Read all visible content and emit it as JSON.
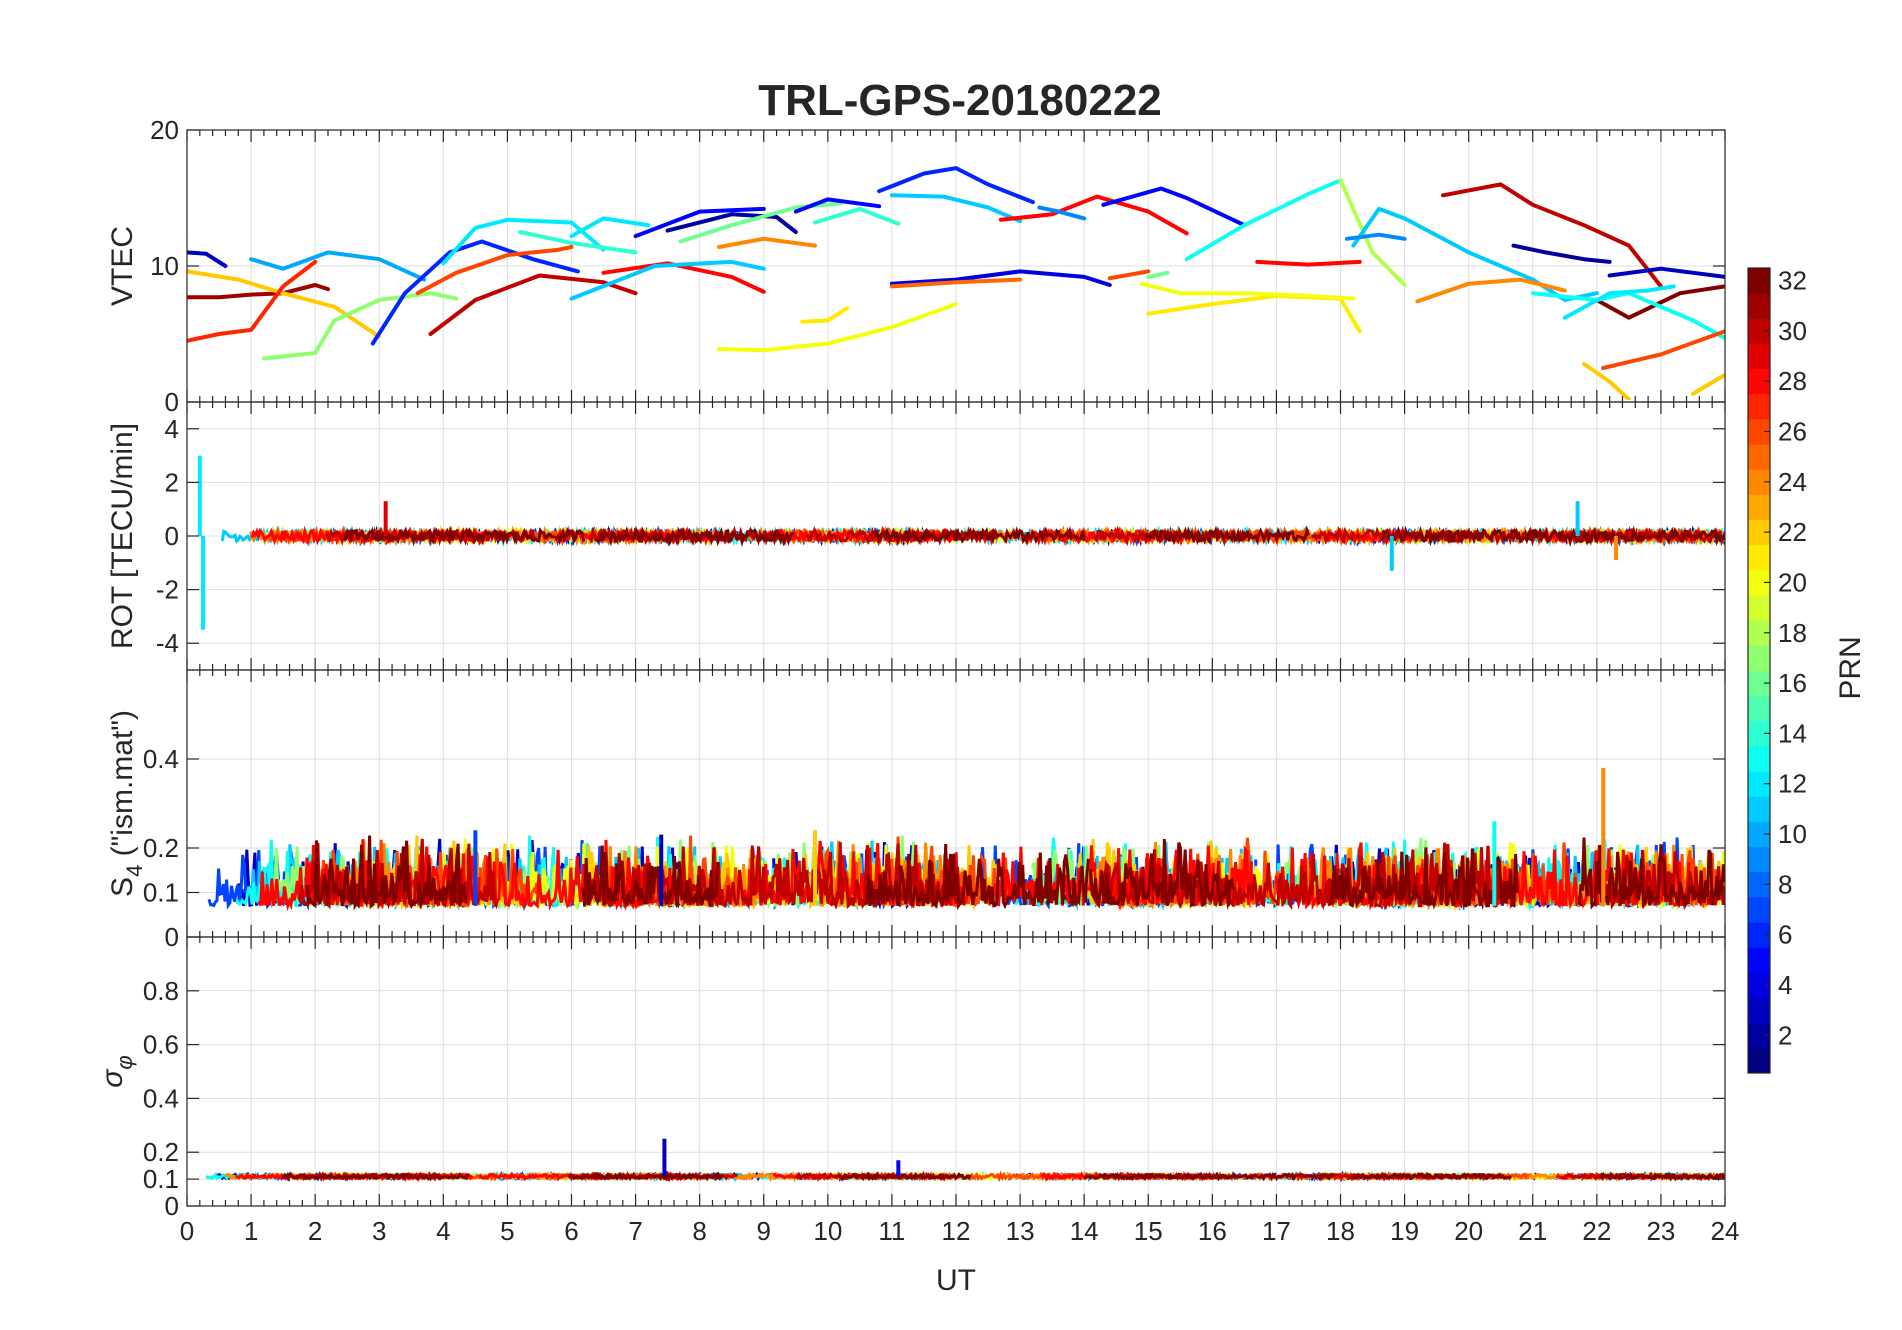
{
  "chart_data": {
    "type": "line",
    "title": "TRL-GPS-20180222",
    "xlabel": "UT",
    "xlim": [
      0,
      24
    ],
    "xticks": [
      0,
      1,
      2,
      3,
      4,
      5,
      6,
      7,
      8,
      9,
      10,
      11,
      12,
      13,
      14,
      15,
      16,
      17,
      18,
      19,
      20,
      21,
      22,
      23,
      24
    ],
    "colorbar": {
      "label": "PRN",
      "range": [
        1,
        32
      ],
      "ticks": [
        2,
        4,
        6,
        8,
        10,
        12,
        14,
        16,
        18,
        20,
        22,
        24,
        26,
        28,
        30,
        32
      ],
      "colormap": "jet"
    },
    "panels": [
      {
        "ylabel": "VTEC",
        "ylim": [
          0,
          20
        ],
        "yticks": [
          0,
          10,
          20
        ],
        "series": [
          {
            "prn": 3,
            "x": [
              0,
              0.3,
              0.6
            ],
            "y": [
              11,
              10.9,
              10
            ]
          },
          {
            "prn": 10,
            "x": [
              1,
              1.5,
              2.2,
              3,
              3.7
            ],
            "y": [
              10.5,
              9.8,
              11,
              10.5,
              9
            ]
          },
          {
            "prn": 31,
            "x": [
              0,
              0.5,
              1,
              1.5,
              2,
              2.2
            ],
            "y": [
              7.7,
              7.7,
              7.9,
              8,
              8.6,
              8.3
            ]
          },
          {
            "prn": 22,
            "x": [
              0,
              0.8,
              1.5,
              2.3,
              3
            ],
            "y": [
              9.6,
              9,
              8,
              7,
              4.8
            ]
          },
          {
            "prn": 27,
            "x": [
              0,
              0.5,
              1,
              1.5,
              2
            ],
            "y": [
              4.5,
              5,
              5.3,
              8.5,
              10.3
            ]
          },
          {
            "prn": 17,
            "x": [
              1.2,
              2,
              2.3,
              3,
              3.8,
              4.2
            ],
            "y": [
              3.2,
              3.6,
              6,
              7.5,
              8,
              7.6
            ]
          },
          {
            "prn": 6,
            "x": [
              2.9,
              3.4,
              4.1,
              4.6,
              5.4,
              6.1
            ],
            "y": [
              4.3,
              8,
              11,
              11.8,
              10.5,
              9.6
            ]
          },
          {
            "prn": 12,
            "x": [
              4,
              4.5,
              5,
              6,
              6.5
            ],
            "y": [
              10.2,
              12.8,
              13.4,
              13.2,
              11.2
            ]
          },
          {
            "prn": 26,
            "x": [
              3.6,
              4.2,
              5,
              5.8,
              6
            ],
            "y": [
              8,
              9.5,
              10.8,
              11.2,
              11.4
            ]
          },
          {
            "prn": 30,
            "x": [
              3.8,
              4.5,
              5.5,
              6.5,
              7
            ],
            "y": [
              5,
              7.5,
              9.3,
              8.8,
              8
            ]
          },
          {
            "prn": 14,
            "x": [
              5.2,
              6,
              7
            ],
            "y": [
              12.5,
              11.7,
              11
            ]
          },
          {
            "prn": 12,
            "x": [
              6,
              6.5,
              7.2
            ],
            "y": [
              12.2,
              13.5,
              13
            ]
          },
          {
            "prn": 28,
            "x": [
              6.5,
              7.5,
              8.5,
              9
            ],
            "y": [
              9.5,
              10.2,
              9.2,
              8.1
            ]
          },
          {
            "prn": 11,
            "x": [
              6,
              7.3,
              8.5,
              9
            ],
            "y": [
              7.6,
              10,
              10.3,
              9.8
            ]
          },
          {
            "prn": 5,
            "x": [
              7,
              8,
              9
            ],
            "y": [
              12.2,
              14,
              14.2
            ]
          },
          {
            "prn": 2,
            "x": [
              7.5,
              8.5,
              9.2,
              9.5
            ],
            "y": [
              12.6,
              13.8,
              13.6,
              12.5
            ]
          },
          {
            "prn": 16,
            "x": [
              7.7,
              8.5,
              9.5,
              10.2
            ],
            "y": [
              11.8,
              13,
              14.3,
              14.6
            ]
          },
          {
            "prn": 24,
            "x": [
              8.3,
              9,
              9.8
            ],
            "y": [
              11.4,
              12,
              11.5
            ]
          },
          {
            "prn": 5,
            "x": [
              9.5,
              10,
              10.8
            ],
            "y": [
              14,
              14.9,
              14.4
            ]
          },
          {
            "prn": 14,
            "x": [
              9.8,
              10.5,
              11.1
            ],
            "y": [
              13.2,
              14.2,
              13.1
            ]
          },
          {
            "prn": 21,
            "x": [
              9.6,
              10,
              10.3
            ],
            "y": [
              5.9,
              6,
              6.9
            ]
          },
          {
            "prn": 20,
            "x": [
              8.3,
              9,
              10,
              11,
              12
            ],
            "y": [
              3.9,
              3.8,
              4.3,
              5.5,
              7.2
            ]
          },
          {
            "prn": 6,
            "x": [
              10.8,
              11.5,
              12,
              12.5,
              13.2
            ],
            "y": [
              15.5,
              16.8,
              17.2,
              16,
              14.7
            ]
          },
          {
            "prn": 11,
            "x": [
              11,
              11.8,
              12.5,
              13
            ],
            "y": [
              15.2,
              15.1,
              14.3,
              13.3
            ]
          },
          {
            "prn": 4,
            "x": [
              11,
              12,
              13,
              14,
              14.4
            ],
            "y": [
              8.7,
              9,
              9.6,
              9.2,
              8.6
            ]
          },
          {
            "prn": 25,
            "x": [
              11,
              12,
              13
            ],
            "y": [
              8.5,
              8.8,
              9
            ]
          },
          {
            "prn": 28,
            "x": [
              12.7,
              13.5,
              14.2,
              15,
              15.6
            ],
            "y": [
              13.4,
              13.8,
              15.1,
              14,
              12.4
            ]
          },
          {
            "prn": 9,
            "x": [
              13.3,
              13.6,
              14
            ],
            "y": [
              14.3,
              14,
              13.5
            ]
          },
          {
            "prn": 26,
            "x": [
              14.4,
              15
            ],
            "y": [
              9.1,
              9.6
            ]
          },
          {
            "prn": 5,
            "x": [
              14.3,
              15.2,
              15.6,
              16.5
            ],
            "y": [
              14.5,
              15.7,
              15,
              13
            ]
          },
          {
            "prn": 13,
            "x": [
              15.6,
              16.5,
              17.5,
              18
            ],
            "y": [
              10.5,
              13,
              15.3,
              16.3
            ]
          },
          {
            "prn": 18,
            "x": [
              18,
              18.5,
              19
            ],
            "y": [
              16.3,
              11,
              8.6
            ]
          },
          {
            "prn": 21,
            "x": [
              15,
              16,
              17,
              18,
              18.3
            ],
            "y": [
              6.5,
              7.2,
              7.8,
              7.6,
              5.2
            ]
          },
          {
            "prn": 20,
            "x": [
              14.9,
              15.5,
              16.5,
              17.5,
              18.2
            ],
            "y": [
              8.7,
              8,
              8,
              7.8,
              7.6
            ]
          },
          {
            "prn": 28,
            "x": [
              16.7,
              17.5,
              18.3
            ],
            "y": [
              10.3,
              10.1,
              10.3
            ]
          },
          {
            "prn": 16,
            "x": [
              15,
              15.3
            ],
            "y": [
              9.2,
              9.5
            ]
          },
          {
            "prn": 11,
            "x": [
              18.2,
              18.6,
              19,
              20,
              21,
              21.5,
              22
            ],
            "y": [
              11.5,
              14.2,
              13.5,
              11,
              9,
              7.5,
              8
            ]
          },
          {
            "prn": 9,
            "x": [
              18.1,
              18.6,
              19
            ],
            "y": [
              12,
              12.3,
              12
            ]
          },
          {
            "prn": 24,
            "x": [
              19.2,
              20,
              20.8,
              21.5
            ],
            "y": [
              7.4,
              8.7,
              9,
              8.2
            ]
          },
          {
            "prn": 30,
            "x": [
              19.6,
              20.5,
              21,
              21.8,
              22.5,
              23
            ],
            "y": [
              15.2,
              16,
              14.5,
              13,
              11.5,
              8.5
            ]
          },
          {
            "prn": 2,
            "x": [
              20.7,
              21.2,
              21.8,
              22.2
            ],
            "y": [
              11.5,
              11,
              10.5,
              10.3
            ]
          },
          {
            "prn": 3,
            "x": [
              22.2,
              23,
              24
            ],
            "y": [
              9.3,
              9.8,
              9.2
            ]
          },
          {
            "prn": 32,
            "x": [
              22,
              22.5,
              23.3,
              24
            ],
            "y": [
              7.5,
              6.2,
              8,
              8.5
            ]
          },
          {
            "prn": 13,
            "x": [
              21,
              22,
              22.5,
              23.5,
              24
            ],
            "y": [
              8,
              7.5,
              8,
              6,
              4.7
            ]
          },
          {
            "prn": 12,
            "x": [
              21.5,
              22.2,
              22.8,
              23.2
            ],
            "y": [
              6.2,
              8,
              8.2,
              8.5
            ]
          },
          {
            "prn": 26,
            "x": [
              22.1,
              23,
              24
            ],
            "y": [
              2.5,
              3.5,
              5.2
            ]
          },
          {
            "prn": 22,
            "x": [
              21.8,
              22.2,
              22.5
            ],
            "y": [
              2.8,
              1.5,
              0.2
            ]
          },
          {
            "prn": 22,
            "x": [
              23.5,
              24
            ],
            "y": [
              0.6,
              2
            ]
          }
        ]
      },
      {
        "ylabel": "ROT [TECU/min]",
        "ylim": [
          -5,
          5
        ],
        "yticks": [
          -4,
          -2,
          0,
          2,
          4
        ],
        "spikes": [
          {
            "prn": 12,
            "x": 0.2,
            "y": 3.0
          },
          {
            "prn": 12,
            "x": 0.25,
            "y": -3.5
          },
          {
            "prn": 29,
            "x": 3.1,
            "y": 1.3
          },
          {
            "prn": 11,
            "x": 18.8,
            "y": -1.3
          },
          {
            "prn": 11,
            "x": 21.7,
            "y": 1.3
          },
          {
            "prn": 24,
            "x": 22.3,
            "y": -0.9
          }
        ],
        "baseline": 0,
        "spread": 0.4
      },
      {
        "ylabel": "S4 (\"ism.mat\")",
        "ylabel_main": "S",
        "ylabel_sub": "4",
        "ylabel_rest": " (\"ism.mat\")",
        "ylim": [
          0,
          0.6
        ],
        "yticks": [
          0,
          0.1,
          0.2,
          0.4
        ],
        "spikes": [
          {
            "prn": 24,
            "x": 22.1,
            "y": 0.38
          },
          {
            "prn": 3,
            "x": 7.4,
            "y": 0.23
          },
          {
            "prn": 22,
            "x": 9.8,
            "y": 0.24
          },
          {
            "prn": 13,
            "x": 20.4,
            "y": 0.26
          },
          {
            "prn": 7,
            "x": 4.5,
            "y": 0.24
          }
        ],
        "baseline": 0.07,
        "spread": 0.1
      },
      {
        "ylabel": "σφ",
        "ylabel_main": "σ",
        "ylabel_sub": "φ",
        "ylim": [
          0,
          1
        ],
        "yticks": [
          0,
          0.1,
          0.2,
          0.4,
          0.6,
          0.8
        ],
        "spikes": [
          {
            "prn": 3,
            "x": 7.45,
            "y": 0.25
          },
          {
            "prn": 5,
            "x": 11.1,
            "y": 0.17
          }
        ],
        "baseline": 0.11,
        "spread": 0.03
      }
    ]
  }
}
